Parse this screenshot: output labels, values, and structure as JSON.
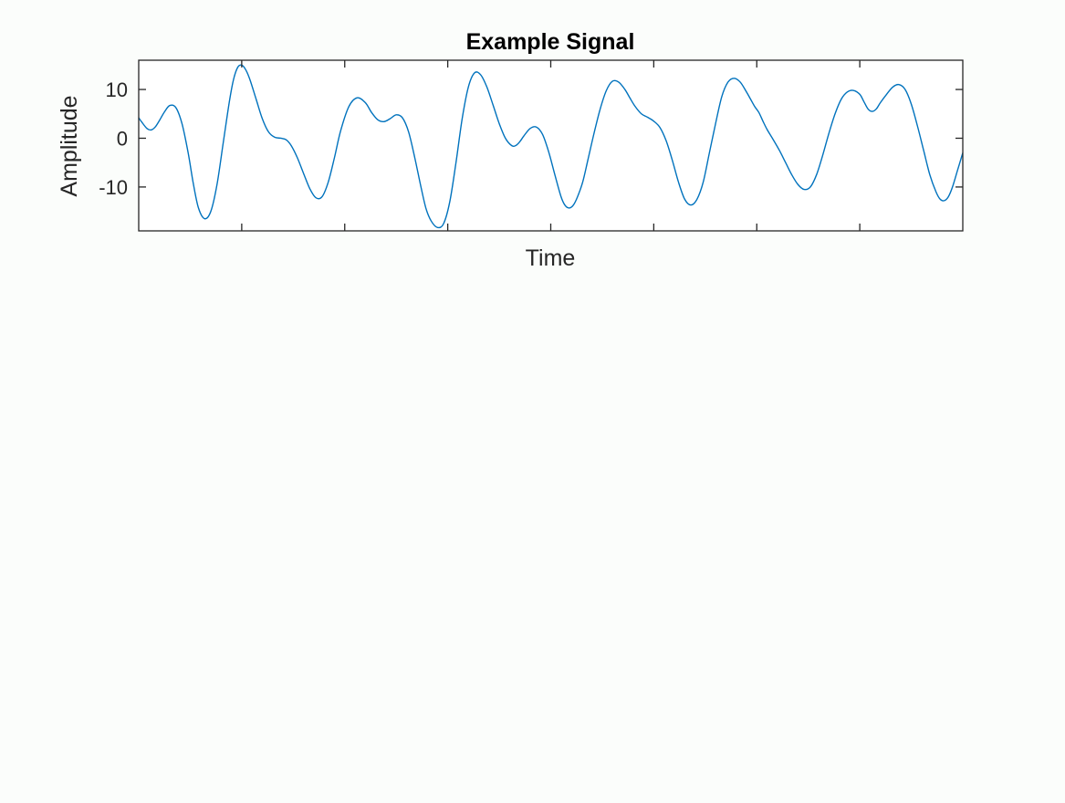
{
  "chart_data": {
    "type": "line",
    "title": "Example Signal",
    "xlabel": "Time",
    "ylabel": "Amplitude",
    "xlim": [
      0,
      800
    ],
    "ylim": [
      -19,
      16
    ],
    "x_ticks": [
      100,
      200,
      300,
      400,
      500,
      600,
      700
    ],
    "x_tick_labels": [],
    "y_ticks": [
      -10,
      0,
      10
    ],
    "y_tick_labels": [
      "-10",
      "0",
      "10"
    ],
    "grid": false,
    "colors": {
      "line": "#0072bd",
      "axes": "#262626",
      "background": "#ffffff"
    },
    "series": [
      {
        "x": [
          0,
          3,
          8,
          12,
          16,
          20,
          25,
          30,
          36,
          42,
          48,
          53,
          58,
          64,
          70,
          76,
          82,
          88,
          92,
          96,
          100,
          104,
          108,
          114,
          120,
          126,
          132,
          138,
          143,
          148,
          154,
          160,
          166,
          172,
          178,
          184,
          190,
          196,
          204,
          212,
          220,
          226,
          232,
          238,
          244,
          250,
          256,
          262,
          268,
          274,
          279,
          284,
          290,
          296,
          302,
          308,
          314,
          320,
          326,
          332,
          338,
          344,
          350,
          356,
          362,
          366,
          370,
          374,
          380,
          386,
          392,
          398,
          404,
          410,
          414,
          418,
          422,
          426,
          431,
          436,
          442,
          448,
          454,
          460,
          466,
          472,
          477,
          482,
          488,
          494,
          500,
          506,
          512,
          518,
          524,
          530,
          536,
          542,
          548,
          554,
          560,
          566,
          572,
          578,
          584,
          590,
          594,
          598,
          602,
          606,
          610,
          616,
          622,
          628,
          634,
          640,
          646,
          652,
          658,
          664,
          670,
          676,
          682,
          688,
          694,
          700,
          704,
          708,
          712,
          716,
          720,
          726,
          732,
          738,
          744,
          750,
          756,
          762,
          768,
          774,
          778,
          782,
          786,
          790,
          795,
          800
        ],
        "y": [
          4.2,
          3.3,
          2.0,
          1.7,
          2.3,
          3.6,
          5.4,
          6.7,
          6.3,
          3.0,
          -3.0,
          -9.3,
          -14.3,
          -16.5,
          -15.0,
          -9.5,
          -1.0,
          7.5,
          12.0,
          14.5,
          15.0,
          14.0,
          12.0,
          8.0,
          4.0,
          1.3,
          0.2,
          0.0,
          -0.3,
          -1.5,
          -4.0,
          -7.2,
          -10.3,
          -12.2,
          -12.0,
          -9.0,
          -4.0,
          1.5,
          6.5,
          8.3,
          7.3,
          5.3,
          3.8,
          3.4,
          4.0,
          4.8,
          4.2,
          1.3,
          -4.0,
          -10.0,
          -14.5,
          -17.0,
          -18.3,
          -17.5,
          -13.0,
          -5.0,
          4.0,
          10.5,
          13.4,
          13.0,
          10.5,
          6.8,
          3.0,
          0.0,
          -1.5,
          -1.5,
          -0.7,
          0.5,
          2.0,
          2.3,
          0.8,
          -2.8,
          -7.5,
          -12.0,
          -13.8,
          -14.3,
          -13.7,
          -12.0,
          -9.0,
          -4.5,
          1.0,
          6.0,
          9.8,
          11.7,
          11.5,
          10.0,
          8.2,
          6.5,
          5.0,
          4.3,
          3.5,
          2.2,
          -0.5,
          -4.5,
          -9.0,
          -12.5,
          -13.7,
          -12.5,
          -9.0,
          -3.0,
          3.0,
          8.5,
          11.5,
          12.3,
          11.5,
          9.5,
          8.0,
          6.5,
          5.3,
          3.5,
          1.8,
          -0.3,
          -2.5,
          -5.0,
          -7.5,
          -9.5,
          -10.5,
          -10.0,
          -7.5,
          -3.5,
          1.0,
          5.0,
          8.0,
          9.5,
          9.8,
          9.0,
          7.5,
          6.0,
          5.5,
          6.0,
          7.3,
          9.0,
          10.5,
          11.0,
          10.0,
          7.0,
          2.5,
          -2.5,
          -7.5,
          -11.0,
          -12.5,
          -12.8,
          -12.0,
          -10.0,
          -6.5,
          -3.0
        ]
      }
    ]
  }
}
